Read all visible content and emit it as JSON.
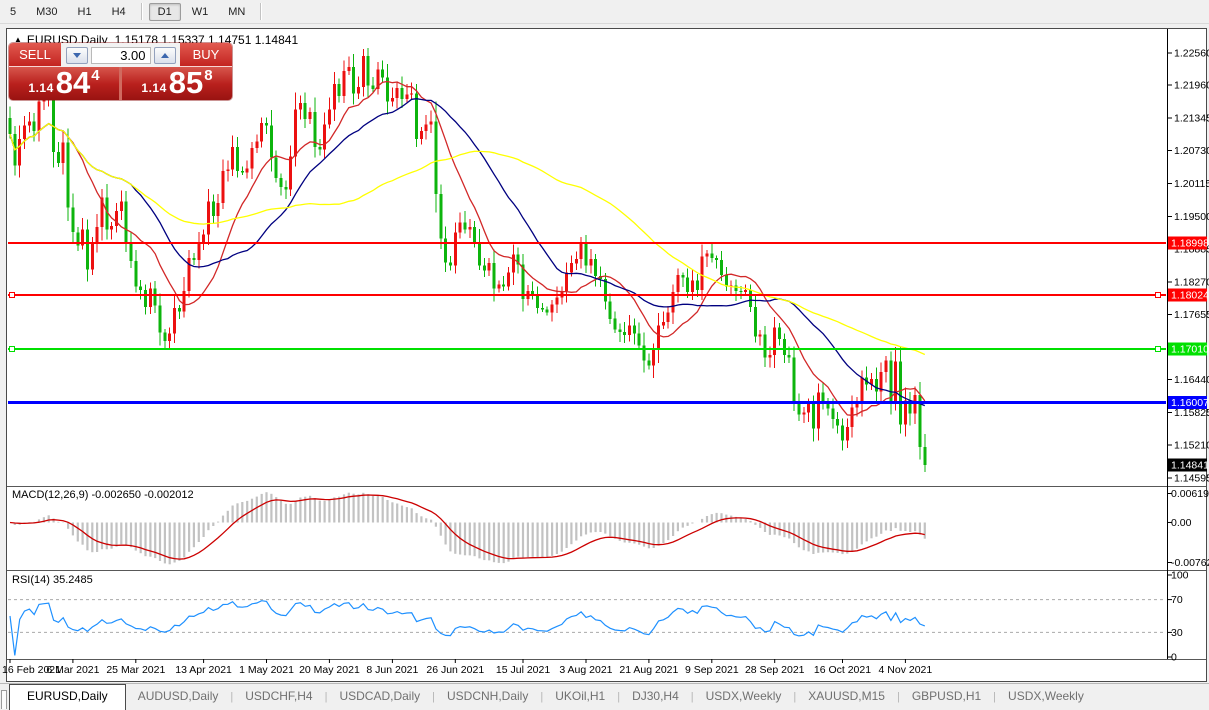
{
  "toolbar": {
    "timeframes": [
      {
        "label": "5",
        "active": false
      },
      {
        "label": "M30",
        "active": false
      },
      {
        "label": "H1",
        "active": false
      },
      {
        "label": "H4",
        "active": false
      },
      {
        "label": "D1",
        "active": true
      },
      {
        "label": "W1",
        "active": false
      },
      {
        "label": "MN",
        "active": false
      }
    ]
  },
  "chart": {
    "header": {
      "collapse_icon": "▲",
      "symbol": "EURUSD,Daily",
      "quotes": "1.15178 1.15337 1.14751 1.14841"
    },
    "trade_panel": {
      "sell_label": "SELL",
      "buy_label": "BUY",
      "volume": "3.00",
      "sell_price": {
        "prefix": "1.14",
        "big": "84",
        "sup": "4"
      },
      "buy_price": {
        "prefix": "1.14",
        "big": "85",
        "sup": "8"
      }
    },
    "price_axis": {
      "ticks": [
        "1.22560",
        "1.21960",
        "1.21345",
        "1.20730",
        "1.20115",
        "1.19500",
        "1.18885",
        "1.18270",
        "1.17655",
        "1.16440",
        "1.15825",
        "1.15210",
        "1.14595"
      ]
    },
    "levels": [
      {
        "price": 1.18998,
        "label": "1.18998",
        "color": "#FF0000",
        "thickness": 2,
        "anchors": false
      },
      {
        "price": 1.18024,
        "label": "1.18024",
        "color": "#FF0000",
        "thickness": 2,
        "anchors": true
      },
      {
        "price": 1.1701,
        "label": "1.17010",
        "color": "#00E000",
        "thickness": 2,
        "anchors": true
      },
      {
        "price": 1.16007,
        "label": "1.16007",
        "color": "#0000FF",
        "thickness": 3,
        "anchors": false
      }
    ],
    "current_price": {
      "label": "1.14841",
      "bg": "#000000"
    },
    "date_axis": {
      "labels": [
        "16 Feb 2021",
        "6 Mar 2021",
        "25 Mar 2021",
        "13 Apr 2021",
        "1 May 2021",
        "20 May 2021",
        "8 Jun 2021",
        "26 Jun 2021",
        "15 Jul 2021",
        "3 Aug 2021",
        "21 Aug 2021",
        "9 Sep 2021",
        "28 Sep 2021",
        "16 Oct 2021",
        "4 Nov 2021"
      ],
      "candle_indices": [
        0,
        13,
        26,
        40,
        53,
        66,
        79,
        92,
        106,
        119,
        132,
        145,
        158,
        172,
        185
      ]
    },
    "macd": {
      "label": "MACD(12,26,9) -0.002650 -0.002012",
      "axis_max": "0.006193",
      "axis_zero": "0.00",
      "axis_min": "-0.007621"
    },
    "rsi": {
      "label": "RSI(14) 35.2485",
      "axis": [
        "100",
        "70",
        "30",
        "0"
      ],
      "levels": [
        70,
        30
      ]
    }
  },
  "chart_data": {
    "type": "candlestick",
    "symbol": "EURUSD",
    "period": "Daily",
    "title": "EURUSD,Daily",
    "price_range": {
      "axis_top": 1.2256,
      "axis_bottom": 1.14595
    },
    "up_color": "#EC1010",
    "down_color": "#0DB40D",
    "closes": [
      1.2104,
      1.2045,
      1.2095,
      1.212,
      1.2128,
      1.211,
      1.2165,
      1.217,
      1.2175,
      1.207,
      1.205,
      1.2088,
      1.1966,
      1.192,
      1.1895,
      1.1925,
      1.185,
      1.1898,
      1.193,
      1.1985,
      1.1925,
      1.1932,
      1.196,
      1.1978,
      1.1902,
      1.1866,
      1.1818,
      1.1812,
      1.178,
      1.1815,
      1.1783,
      1.1732,
      1.1716,
      1.173,
      1.1778,
      1.1772,
      1.181,
      1.1872,
      1.1868,
      1.1898,
      1.1916,
      1.1978,
      1.195,
      1.1975,
      1.2035,
      1.2038,
      1.208,
      1.2035,
      1.2032,
      1.204,
      1.2078,
      1.209,
      1.2125,
      1.212,
      1.206,
      1.2022,
      1.2005,
      1.2,
      1.2062,
      1.215,
      1.2162,
      1.2132,
      1.2145,
      1.208,
      1.2075,
      1.2122,
      1.215,
      1.2198,
      1.2175,
      1.2222,
      1.223,
      1.218,
      1.2192,
      1.225,
      1.2195,
      1.2188,
      1.2225,
      1.221,
      1.2165,
      1.2172,
      1.219,
      1.217,
      1.2178,
      1.218,
      1.2095,
      1.211,
      1.2122,
      1.2128,
      1.1992,
      1.1908,
      1.1863,
      1.1858,
      1.192,
      1.1938,
      1.1925,
      1.193,
      1.1902,
      1.1858,
      1.1848,
      1.1862,
      1.1815,
      1.1822,
      1.1818,
      1.1845,
      1.1878,
      1.186,
      1.1795,
      1.181,
      1.1802,
      1.1778,
      1.1775,
      1.177,
      1.1785,
      1.1798,
      1.181,
      1.1845,
      1.1862,
      1.187,
      1.1898,
      1.1858,
      1.187,
      1.1838,
      1.1832,
      1.179,
      1.1758,
      1.1738,
      1.1733,
      1.1728,
      1.1745,
      1.173,
      1.1708,
      1.168,
      1.167,
      1.17,
      1.1745,
      1.1752,
      1.177,
      1.1808,
      1.184,
      1.1835,
      1.1808,
      1.183,
      1.1812,
      1.1875,
      1.188,
      1.1872,
      1.1868,
      1.184,
      1.1818,
      1.182,
      1.181,
      1.1808,
      1.1812,
      1.178,
      1.1725,
      1.1728,
      1.1685,
      1.169,
      1.1742,
      1.172,
      1.169,
      1.1685,
      1.16,
      1.1578,
      1.1582,
      1.16,
      1.1552,
      1.162,
      1.1598,
      1.159,
      1.157,
      1.1558,
      1.153,
      1.1555,
      1.1592,
      1.16,
      1.1648,
      1.1635,
      1.1645,
      1.1622,
      1.1658,
      1.168,
      1.1602,
      1.1678,
      1.156,
      1.1605,
      1.158,
      1.1615,
      1.1518,
      1.14841
    ],
    "moving_averages": [
      {
        "period": 12,
        "color": "#D22828"
      },
      {
        "period": 26,
        "color": "#000080"
      },
      {
        "period": 60,
        "color": "#FFFF00"
      }
    ],
    "horizontal_levels": [
      1.18998,
      1.18024,
      1.1701,
      1.16007
    ],
    "indicators": [
      {
        "type": "MACD",
        "params": [
          12,
          26,
          9
        ],
        "values": [
          -0.00265,
          -0.002012
        ]
      },
      {
        "type": "RSI",
        "params": [
          14
        ],
        "value": 35.2485
      }
    ],
    "last_ohlc": {
      "open": 1.15178,
      "high": 1.15337,
      "low": 1.14751,
      "close": 1.14841
    }
  },
  "tabbar": {
    "tabs": [
      {
        "label": "EURUSD,Daily",
        "active": true
      },
      {
        "label": "AUDUSD,Daily",
        "active": false
      },
      {
        "label": "USDCHF,H4",
        "active": false
      },
      {
        "label": "USDCAD,Daily",
        "active": false
      },
      {
        "label": "USDCNH,Daily",
        "active": false
      },
      {
        "label": "UKOil,H1",
        "active": false
      },
      {
        "label": "DJ30,H4",
        "active": false
      },
      {
        "label": "USDX,Weekly",
        "active": false
      },
      {
        "label": "XAUUSD,M15",
        "active": false
      },
      {
        "label": "GBPUSD,H1",
        "active": false
      },
      {
        "label": "USDX,Weekly",
        "active": false
      }
    ],
    "left_arrow": "◄",
    "right_arrow": "►"
  }
}
